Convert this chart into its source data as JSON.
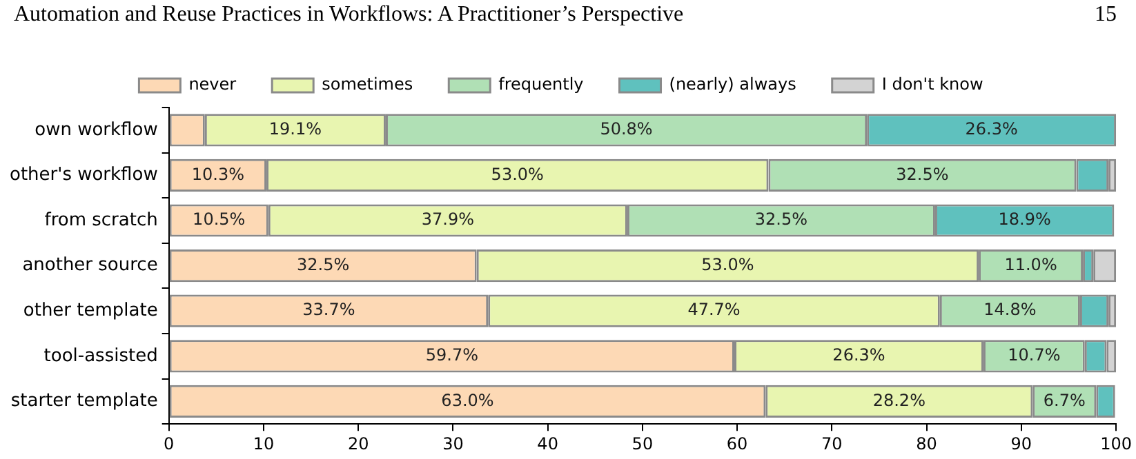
{
  "chart_data": {
    "type": "bar",
    "orientation": "horizontal",
    "stacked": true,
    "title": "Automation and Reuse Practices in Workflows: A Practitioner’s Perspective",
    "annotations": [
      "15"
    ],
    "categories": [
      "own workflow",
      "other's workflow",
      "from scratch",
      "another source",
      "other template",
      "tool-assisted",
      "starter template"
    ],
    "series": [
      {
        "name": "never",
        "color": "#fdd9b5",
        "values": [
          3.8,
          10.3,
          10.5,
          32.5,
          33.7,
          59.7,
          63.0
        ],
        "value_labels": [
          null,
          "10.3%",
          "10.5%",
          "32.5%",
          "33.7%",
          "59.7%",
          "63.0%"
        ]
      },
      {
        "name": "sometimes",
        "color": "#e8f5b0",
        "values": [
          19.1,
          53.0,
          37.9,
          53.0,
          47.7,
          26.3,
          28.2
        ],
        "value_labels": [
          "19.1%",
          "53.0%",
          "37.9%",
          "53.0%",
          "47.7%",
          "26.3%",
          "28.2%"
        ]
      },
      {
        "name": "frequently",
        "color": "#b0e0b5",
        "values": [
          50.8,
          32.5,
          32.5,
          11.0,
          14.8,
          10.7,
          6.7
        ],
        "value_labels": [
          "50.8%",
          "32.5%",
          "32.5%",
          "11.0%",
          "14.8%",
          "10.7%",
          "6.7%"
        ]
      },
      {
        "name": "(nearly) always",
        "color": "#5fc1be",
        "values": [
          26.3,
          3.4,
          18.9,
          1.1,
          3.0,
          2.3,
          2.0
        ],
        "value_labels": [
          "26.3%",
          null,
          "18.9%",
          null,
          null,
          null,
          null
        ]
      },
      {
        "name": "I don't know",
        "color": "#d3d3d3",
        "values": [
          0,
          0.8,
          0,
          2.4,
          0.8,
          1.0,
          0
        ],
        "value_labels": [
          null,
          null,
          null,
          null,
          null,
          null,
          null
        ]
      }
    ],
    "xlim": [
      0,
      100
    ],
    "xticks": [
      0,
      10,
      20,
      30,
      40,
      50,
      60,
      70,
      80,
      90,
      100
    ],
    "grid": false,
    "legend": "top"
  }
}
